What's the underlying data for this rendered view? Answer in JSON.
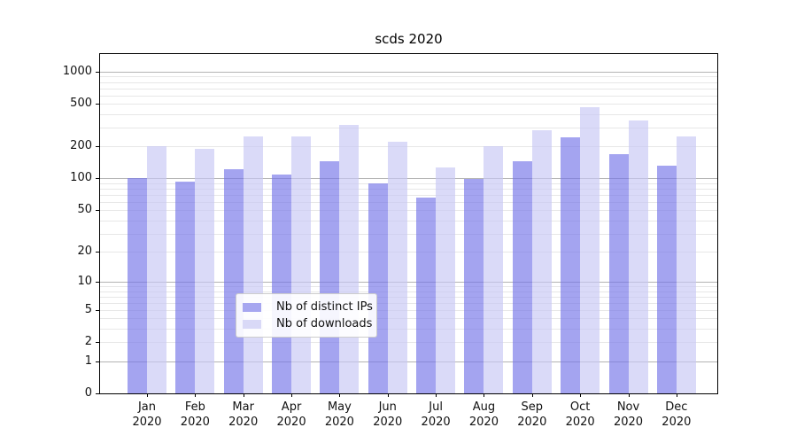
{
  "title": "scds 2020",
  "chart_data": {
    "type": "bar",
    "title": "scds 2020",
    "categories": [
      "Jan",
      "Feb",
      "Mar",
      "Apr",
      "May",
      "Jun",
      "Jul",
      "Aug",
      "Sep",
      "Oct",
      "Nov",
      "Dec"
    ],
    "year_label": "2020",
    "series": [
      {
        "name": "Nb of distinct IPs",
        "color": "#a6a6f0",
        "fill": "rgba(115,115,232,0.65)",
        "values": [
          100,
          94,
          123,
          110,
          146,
          90,
          66,
          99,
          144,
          244,
          171,
          131
        ]
      },
      {
        "name": "Nb of downloads",
        "color": "#d9d9f7",
        "fill": "rgba(198,198,244,0.65)",
        "values": [
          200,
          190,
          248,
          246,
          320,
          220,
          128,
          200,
          285,
          470,
          352,
          249
        ]
      }
    ],
    "xlabel": "",
    "ylabel": "",
    "y_scale": "log10(value+1)",
    "y_tick_values": [
      1000,
      500,
      200,
      100,
      50,
      20,
      10,
      5,
      2,
      1,
      0
    ],
    "y_major_gridline_values": [
      1,
      10,
      100,
      1000
    ],
    "y_minor_gridline_values": [
      2,
      3,
      4,
      5,
      6,
      7,
      8,
      9,
      20,
      30,
      40,
      50,
      60,
      70,
      80,
      90,
      200,
      300,
      400,
      500,
      600,
      700,
      800,
      900
    ],
    "ylim": [
      0,
      1450
    ],
    "grid": "horizontal only",
    "legend_position": "lower center"
  }
}
